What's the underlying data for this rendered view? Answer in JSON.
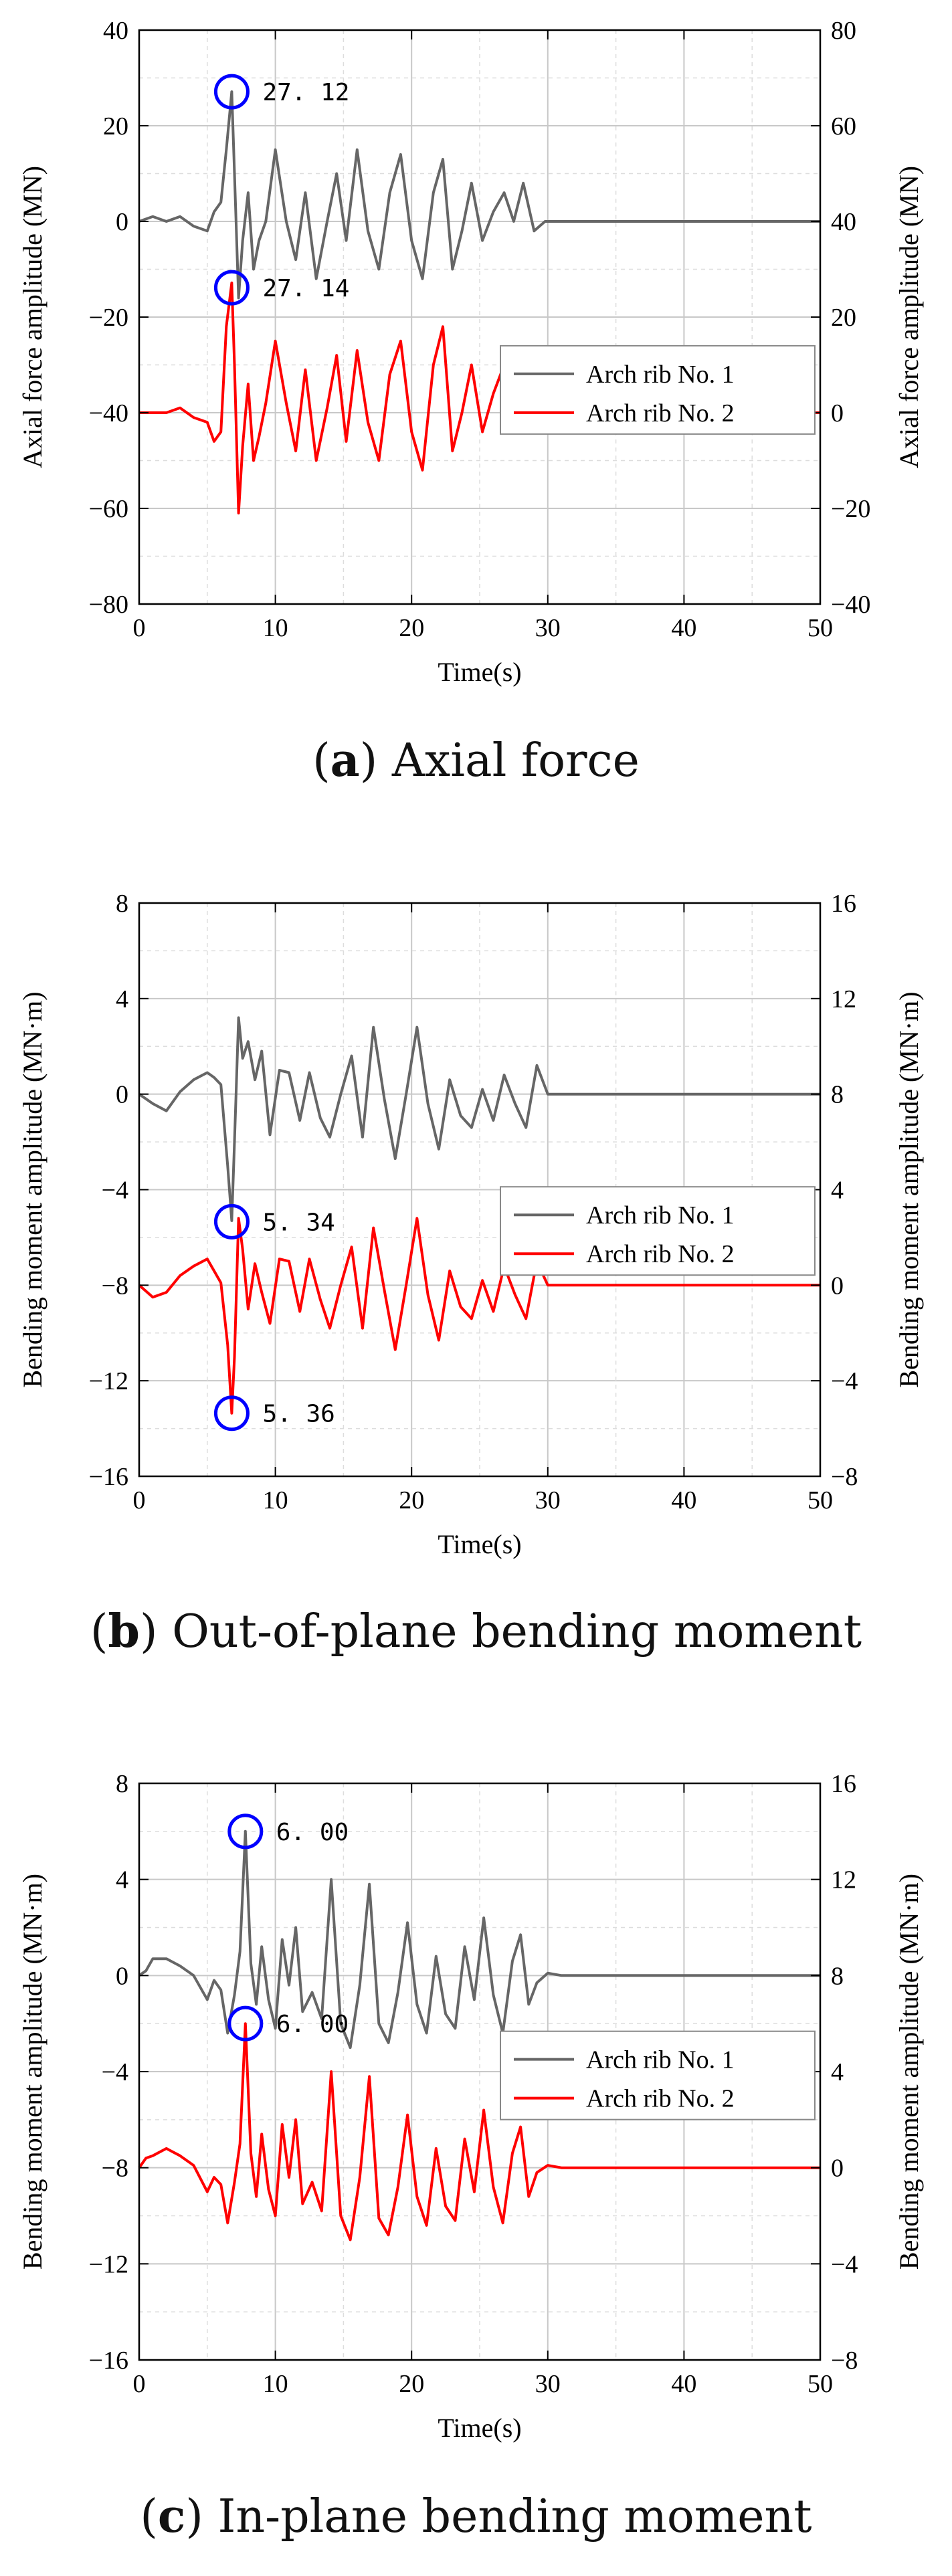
{
  "chart_data": [
    {
      "type": "line",
      "caption_letter": "a",
      "caption_text": "Axial force",
      "xlabel": "Time(s)",
      "ylabel_left": "Axial force amplitude (MN)",
      "ylabel_right": "Axial force amplitude (MN)",
      "xlim": [
        0,
        50
      ],
      "xticks": [
        "0",
        "10",
        "20",
        "30",
        "40",
        "50"
      ],
      "ylim_left": [
        -80,
        40
      ],
      "yticks_left": [
        "40",
        "20",
        "0",
        "−20",
        "−40",
        "−60",
        "−80"
      ],
      "ylim_right": [
        -40,
        80
      ],
      "yticks_right": [
        "80",
        "60",
        "40",
        "20",
        "0",
        "−20",
        "−40"
      ],
      "grid": true,
      "legend_position": "center-right",
      "series": [
        {
          "name": "Arch rib No. 1",
          "color": "#666666",
          "axis": "right",
          "x": [
            0,
            1,
            2,
            3,
            4,
            5,
            5.5,
            6,
            6.4,
            6.8,
            7.0,
            7.3,
            7.6,
            8.0,
            8.4,
            8.8,
            9.3,
            10.0,
            10.8,
            11.5,
            12.2,
            13.0,
            13.8,
            14.5,
            15.2,
            16.0,
            16.8,
            17.6,
            18.4,
            19.2,
            20.0,
            20.8,
            21.6,
            22.3,
            23.0,
            23.7,
            24.4,
            25.2,
            26.0,
            26.8,
            27.5,
            28.2,
            29.0,
            29.8,
            30.5,
            31.5,
            35,
            40,
            45,
            50
          ],
          "y": [
            40,
            41,
            40,
            41,
            39,
            38,
            42,
            44,
            55,
            67.12,
            50,
            24,
            36,
            46,
            30,
            36,
            40,
            55,
            40,
            32,
            46,
            28,
            40,
            50,
            36,
            55,
            38,
            30,
            46,
            54,
            36,
            28,
            46,
            53,
            30,
            38,
            48,
            36,
            42,
            46,
            40,
            48,
            38,
            40,
            40,
            40,
            40,
            40,
            40,
            40
          ]
        },
        {
          "name": "Arch rib No. 2",
          "color": "#ff0000",
          "axis": "left",
          "x": [
            0,
            1,
            2,
            3,
            4,
            5,
            5.5,
            6,
            6.4,
            6.8,
            7.0,
            7.3,
            7.6,
            8.0,
            8.4,
            8.8,
            9.3,
            10.0,
            10.8,
            11.5,
            12.2,
            13.0,
            13.8,
            14.5,
            15.2,
            16.0,
            16.8,
            17.6,
            18.4,
            19.2,
            20.0,
            20.8,
            21.6,
            22.3,
            23.0,
            23.7,
            24.4,
            25.2,
            26.0,
            26.8,
            27.5,
            28.2,
            29.0,
            29.8,
            30.5,
            31.5,
            35,
            40,
            45,
            50
          ],
          "y": [
            -40,
            -40,
            -40,
            -39,
            -41,
            -42,
            -46,
            -44,
            -22,
            -12.86,
            -30,
            -61,
            -47,
            -34,
            -50,
            -45,
            -38,
            -25,
            -38,
            -48,
            -31,
            -50,
            -39,
            -28,
            -46,
            -27,
            -42,
            -50,
            -32,
            -25,
            -44,
            -52,
            -30,
            -22,
            -48,
            -40,
            -30,
            -44,
            -36,
            -30,
            -40,
            -32,
            -44,
            -40,
            -40,
            -40,
            -40,
            -40,
            -40,
            -40
          ]
        }
      ],
      "annotations": [
        {
          "label": "27. 12",
          "x": 6.8,
          "y_right": 67.12
        },
        {
          "label": "27. 14",
          "x": 6.8,
          "y_left": -13.86
        }
      ]
    },
    {
      "type": "line",
      "caption_letter": "b",
      "caption_text": "Out-of-plane bending moment",
      "xlabel": "Time(s)",
      "ylabel_left": "Bending moment amplitude (MN·m)",
      "ylabel_right": "Bending moment amplitude (MN·m)",
      "xlim": [
        0,
        50
      ],
      "xticks": [
        "0",
        "10",
        "20",
        "30",
        "40",
        "50"
      ],
      "ylim_left": [
        -16,
        8
      ],
      "yticks_left": [
        "8",
        "4",
        "0",
        "−4",
        "−8",
        "−12",
        "−16"
      ],
      "ylim_right": [
        -8,
        16
      ],
      "yticks_right": [
        "16",
        "12",
        "8",
        "4",
        "0",
        "−4",
        "−8"
      ],
      "grid": true,
      "legend_position": "center-right",
      "series": [
        {
          "name": "Arch rib No. 1",
          "color": "#666666",
          "axis": "right",
          "x": [
            0,
            1,
            2,
            3,
            4,
            5,
            5.5,
            6,
            6.5,
            6.8,
            7.0,
            7.3,
            7.6,
            8.0,
            8.5,
            9.0,
            9.6,
            10.3,
            11.0,
            11.8,
            12.5,
            13.3,
            14.0,
            14.8,
            15.6,
            16.4,
            17.2,
            18.0,
            18.8,
            19.6,
            20.4,
            21.2,
            22.0,
            22.8,
            23.6,
            24.4,
            25.2,
            26.0,
            26.8,
            27.6,
            28.4,
            29.2,
            30,
            35,
            40,
            45,
            50
          ],
          "y": [
            8,
            7.6,
            7.3,
            8.1,
            8.6,
            8.9,
            8.7,
            8.4,
            5.0,
            2.7,
            6.0,
            11.2,
            9.5,
            10.2,
            8.6,
            9.8,
            6.3,
            9.0,
            8.9,
            6.9,
            8.9,
            7.0,
            6.2,
            8.0,
            9.6,
            6.2,
            10.8,
            7.8,
            5.3,
            8.0,
            10.8,
            7.6,
            5.7,
            8.6,
            7.1,
            6.6,
            8.2,
            6.9,
            8.8,
            7.6,
            6.6,
            9.2,
            8,
            8,
            8,
            8,
            8
          ]
        },
        {
          "name": "Arch rib No. 2",
          "color": "#ff0000",
          "axis": "left",
          "x": [
            0,
            1,
            2,
            3,
            4,
            5,
            5.5,
            6,
            6.5,
            6.8,
            7.0,
            7.3,
            7.6,
            8.0,
            8.5,
            9.0,
            9.6,
            10.3,
            11.0,
            11.8,
            12.5,
            13.3,
            14.0,
            14.8,
            15.6,
            16.4,
            17.2,
            18.0,
            18.8,
            19.6,
            20.4,
            21.2,
            22.0,
            22.8,
            23.6,
            24.4,
            25.2,
            26.0,
            26.8,
            27.6,
            28.4,
            29.2,
            30,
            35,
            40,
            45,
            50
          ],
          "y": [
            -8,
            -8.5,
            -8.3,
            -7.6,
            -7.2,
            -6.9,
            -7.4,
            -7.9,
            -10.5,
            -13.36,
            -11,
            -5.2,
            -6.5,
            -9.0,
            -7.1,
            -8.3,
            -9.6,
            -6.9,
            -7.0,
            -9.1,
            -6.9,
            -8.6,
            -9.8,
            -8.0,
            -6.4,
            -9.8,
            -5.6,
            -8.2,
            -10.7,
            -8.0,
            -5.2,
            -8.4,
            -10.3,
            -7.4,
            -8.9,
            -9.4,
            -7.8,
            -9.1,
            -7.2,
            -8.4,
            -9.4,
            -7.0,
            -8,
            -8,
            -8,
            -8,
            -8
          ]
        }
      ],
      "annotations": [
        {
          "label": "5. 34",
          "x": 6.8,
          "y_right": 2.66
        },
        {
          "label": "5. 36",
          "x": 6.8,
          "y_left": -13.36
        }
      ]
    },
    {
      "type": "line",
      "caption_letter": "c",
      "caption_text": "In-plane bending moment",
      "xlabel": "Time(s)",
      "ylabel_left": "Bending moment amplitude (MN·m)",
      "ylabel_right": "Bending moment amplitude (MN·m)",
      "xlim": [
        0,
        50
      ],
      "xticks": [
        "0",
        "10",
        "20",
        "30",
        "40",
        "50"
      ],
      "ylim_left": [
        -16,
        8
      ],
      "yticks_left": [
        "8",
        "4",
        "0",
        "−4",
        "−8",
        "−12",
        "−16"
      ],
      "ylim_right": [
        -8,
        16
      ],
      "yticks_right": [
        "16",
        "12",
        "8",
        "4",
        "0",
        "−4",
        "−8"
      ],
      "grid": true,
      "legend_position": "center-right",
      "series": [
        {
          "name": "Arch rib No. 1",
          "color": "#666666",
          "axis": "right",
          "x": [
            0,
            0.5,
            1,
            2,
            3,
            4,
            5,
            5.5,
            6,
            6.5,
            7.0,
            7.4,
            7.8,
            8.2,
            8.6,
            9.0,
            9.5,
            10.0,
            10.5,
            11.0,
            11.5,
            12.0,
            12.7,
            13.4,
            14.1,
            14.8,
            15.5,
            16.2,
            16.9,
            17.6,
            18.3,
            19.0,
            19.7,
            20.4,
            21.1,
            21.8,
            22.5,
            23.2,
            23.9,
            24.6,
            25.3,
            26.0,
            26.7,
            27.4,
            28.0,
            28.6,
            29.2,
            30,
            31,
            35,
            40,
            45,
            50
          ],
          "y": [
            8,
            8.2,
            8.7,
            8.7,
            8.4,
            8.0,
            7.0,
            7.8,
            7.4,
            5.6,
            7.2,
            9.0,
            14.0,
            8.5,
            6.8,
            9.2,
            7.0,
            5.8,
            9.5,
            7.6,
            10.0,
            6.5,
            7.3,
            6.2,
            12.0,
            6.0,
            5.0,
            7.6,
            11.8,
            6.0,
            5.2,
            7.3,
            10.2,
            6.8,
            5.6,
            8.8,
            6.4,
            5.8,
            9.2,
            7.0,
            10.4,
            7.2,
            5.6,
            8.6,
            9.7,
            6.8,
            7.7,
            8.1,
            8,
            8,
            8,
            8,
            8
          ]
        },
        {
          "name": "Arch rib No. 2",
          "color": "#ff0000",
          "axis": "left",
          "x": [
            0,
            0.5,
            1,
            2,
            3,
            4,
            5,
            5.5,
            6,
            6.5,
            7.0,
            7.4,
            7.8,
            8.2,
            8.6,
            9.0,
            9.5,
            10.0,
            10.5,
            11.0,
            11.5,
            12.0,
            12.7,
            13.4,
            14.1,
            14.8,
            15.5,
            16.2,
            16.9,
            17.6,
            18.3,
            19.0,
            19.7,
            20.4,
            21.1,
            21.8,
            22.5,
            23.2,
            23.9,
            24.6,
            25.3,
            26.0,
            26.7,
            27.4,
            28.0,
            28.6,
            29.2,
            30,
            31,
            35,
            40,
            45,
            50
          ],
          "y": [
            -8,
            -7.6,
            -7.5,
            -7.2,
            -7.5,
            -7.9,
            -9.0,
            -8.4,
            -8.7,
            -10.3,
            -8.6,
            -7.0,
            -2.0,
            -7.4,
            -9.2,
            -6.6,
            -8.9,
            -10.0,
            -6.2,
            -8.4,
            -6.0,
            -9.5,
            -8.6,
            -9.8,
            -4.0,
            -10.0,
            -11.0,
            -8.4,
            -4.2,
            -10.1,
            -10.8,
            -8.8,
            -5.8,
            -9.2,
            -10.4,
            -7.2,
            -9.6,
            -10.2,
            -6.8,
            -9.0,
            -5.6,
            -8.8,
            -10.3,
            -7.4,
            -6.3,
            -9.2,
            -8.2,
            -7.9,
            -8,
            -8,
            -8,
            -8,
            -8
          ]
        }
      ],
      "annotations": [
        {
          "label": "6. 00",
          "x": 7.8,
          "y_right": 14.0
        },
        {
          "label": "6. 00",
          "x": 7.8,
          "y_left": -2.0
        }
      ]
    }
  ]
}
